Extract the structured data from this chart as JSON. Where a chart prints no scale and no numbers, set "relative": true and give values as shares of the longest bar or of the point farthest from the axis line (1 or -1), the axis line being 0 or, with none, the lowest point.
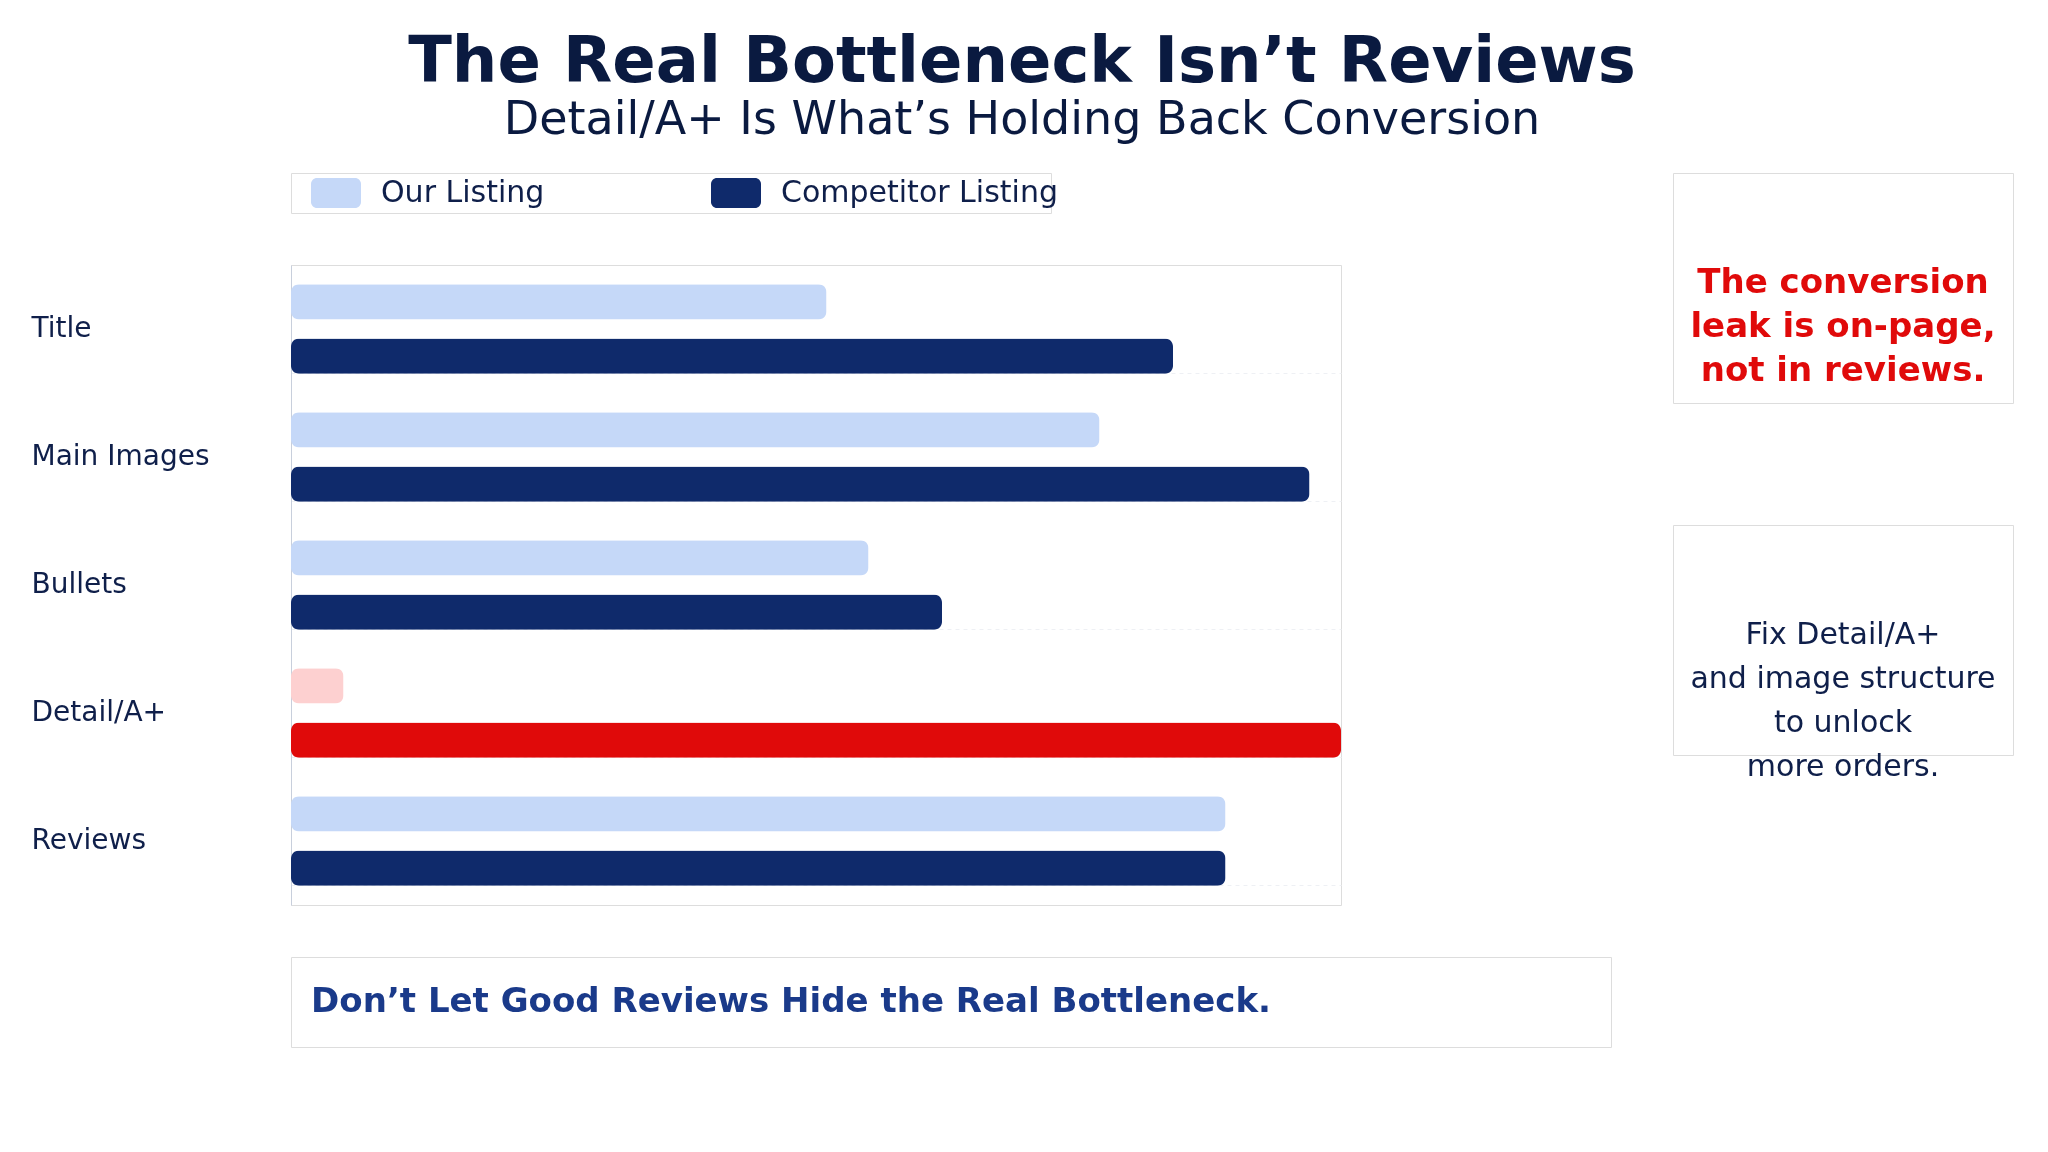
{
  "chart_data": [
    {
      "type": "bar",
      "orientation": "horizontal",
      "relative": true,
      "title": "The Real Bottleneck Isn’t Reviews",
      "subtitle": "Detail/A+ Is What’s Holding Back Conversion",
      "categories": [
        "Title",
        "Main Images",
        "Bullets",
        "Detail/A+",
        "Reviews"
      ],
      "series": [
        {
          "name": "Our Listing",
          "color": "#c5d8f8",
          "colors": [
            "#c5d8f8",
            "#c5d8f8",
            "#c5d8f8",
            "#fdd0d0",
            "#c5d8f8"
          ],
          "values": [
            0.51,
            0.77,
            0.55,
            0.05,
            0.89
          ]
        },
        {
          "name": "Competitor Listing",
          "color": "#0f2a6b",
          "colors": [
            "#0f2a6b",
            "#0f2a6b",
            "#0f2a6b",
            "#e00a0a",
            "#0f2a6b"
          ],
          "values": [
            0.84,
            0.97,
            0.62,
            1.0,
            0.89
          ]
        }
      ],
      "legend": "top",
      "grid": false,
      "annotations": [
        "Don’t Let Good Reviews Hide the Real Bottleneck."
      ]
    },
    {
      "type": "other",
      "annotations": [
        "The conversion\nleak is on-page,\nnot in reviews.",
        "Fix Detail/A+\nand image structure\nto unlock\nmore orders."
      ]
    }
  ]
}
